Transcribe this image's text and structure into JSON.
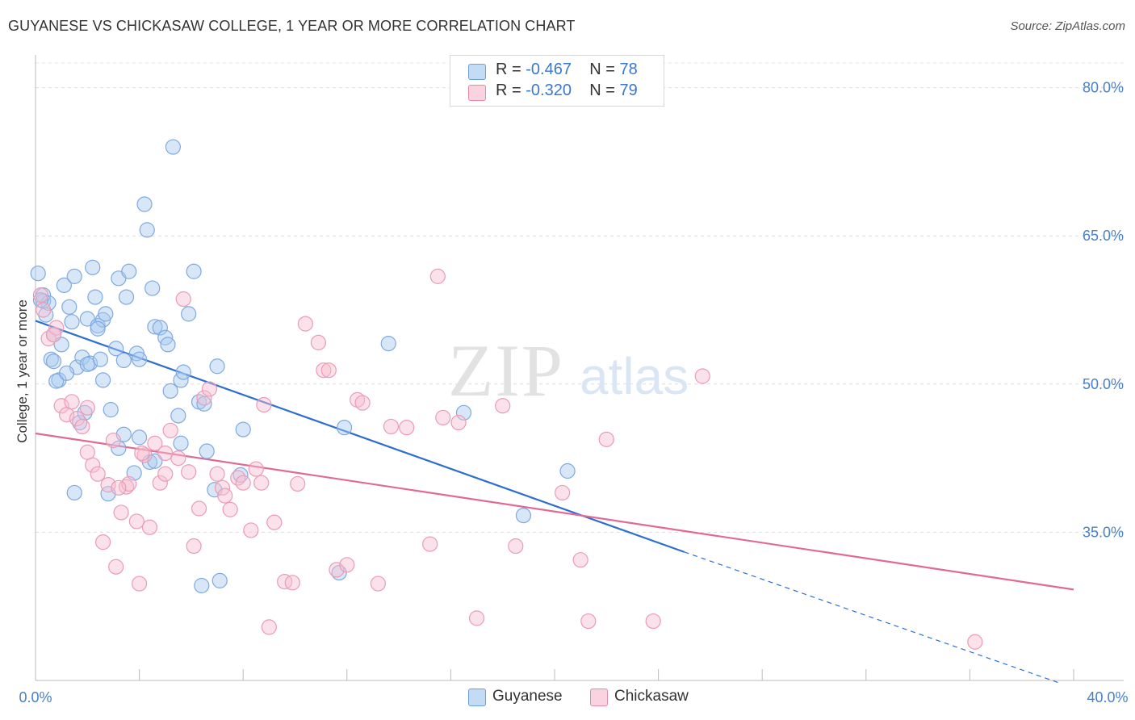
{
  "header": {
    "title": "GUYANESE VS CHICKASAW COLLEGE, 1 YEAR OR MORE CORRELATION CHART",
    "source": "Source: ZipAtlas.com"
  },
  "watermark": {
    "zip": "ZIP",
    "atlas": "atlas"
  },
  "legend": {
    "rows": [
      {
        "r_label": "R = ",
        "r_value": "-0.467",
        "n_label": "N = ",
        "n_value": "78",
        "color": "#a9c9f0",
        "border": "#6f9fd8"
      },
      {
        "r_label": "R = ",
        "r_value": "-0.320",
        "n_label": "N = ",
        "n_value": "79",
        "color": "#f7bfd0",
        "border": "#e48aa6"
      }
    ]
  },
  "bottom_legend": {
    "series1": "Guyanese",
    "series2": "Chickasaw"
  },
  "chart_data": {
    "type": "scatter",
    "title": "GUYANESE VS CHICKASAW COLLEGE, 1 YEAR OR MORE CORRELATION CHART",
    "xlabel": "",
    "ylabel": "College, 1 year or more",
    "xlim": [
      0,
      40
    ],
    "ylim": [
      20,
      82.5
    ],
    "y_ticks": [
      35,
      50,
      65,
      80
    ],
    "y_tick_labels": [
      "35.0%",
      "50.0%",
      "65.0%",
      "80.0%"
    ],
    "x_tick_labels": [
      "0.0%",
      "40.0%"
    ],
    "grid": true,
    "series": [
      {
        "name": "Guyanese",
        "color": "#7fa9e0",
        "line_color": "#2d6fd1",
        "trend": {
          "x0": 0,
          "y0": 56.4,
          "x1": 25.0,
          "y1": 33.0,
          "dash_to_x": 39.5,
          "dash_to_y": 19.7
        },
        "points": [
          [
            0.1,
            61.2
          ],
          [
            0.3,
            59.0
          ],
          [
            0.3,
            58.4
          ],
          [
            0.5,
            58.2
          ],
          [
            0.7,
            55.0
          ],
          [
            0.6,
            52.5
          ],
          [
            0.9,
            50.4
          ],
          [
            1.0,
            54.0
          ],
          [
            1.1,
            60.0
          ],
          [
            1.3,
            57.8
          ],
          [
            1.4,
            56.3
          ],
          [
            1.5,
            60.9
          ],
          [
            1.6,
            51.7
          ],
          [
            1.8,
            52.7
          ],
          [
            2.0,
            56.6
          ],
          [
            2.1,
            52.1
          ],
          [
            2.2,
            61.8
          ],
          [
            2.3,
            58.8
          ],
          [
            2.4,
            55.9
          ],
          [
            2.5,
            52.5
          ],
          [
            2.6,
            56.5
          ],
          [
            2.7,
            57.1
          ],
          [
            2.9,
            47.4
          ],
          [
            3.1,
            53.6
          ],
          [
            3.2,
            60.7
          ],
          [
            3.4,
            52.4
          ],
          [
            3.5,
            58.8
          ],
          [
            3.6,
            61.4
          ],
          [
            3.8,
            41.0
          ],
          [
            3.9,
            53.1
          ],
          [
            4.0,
            44.6
          ],
          [
            4.2,
            68.2
          ],
          [
            4.3,
            65.6
          ],
          [
            4.4,
            42.1
          ],
          [
            4.5,
            59.7
          ],
          [
            4.6,
            55.8
          ],
          [
            4.8,
            55.7
          ],
          [
            5.0,
            54.7
          ],
          [
            5.1,
            54.0
          ],
          [
            5.2,
            49.3
          ],
          [
            5.3,
            74.0
          ],
          [
            5.5,
            46.8
          ],
          [
            5.6,
            50.4
          ],
          [
            5.7,
            51.2
          ],
          [
            5.9,
            57.1
          ],
          [
            6.1,
            61.4
          ],
          [
            6.3,
            48.2
          ],
          [
            6.4,
            29.6
          ],
          [
            6.6,
            43.2
          ],
          [
            6.9,
            39.3
          ],
          [
            7.0,
            51.8
          ],
          [
            7.9,
            40.8
          ],
          [
            8.0,
            45.4
          ],
          [
            11.9,
            45.6
          ],
          [
            13.6,
            54.1
          ],
          [
            16.5,
            47.1
          ],
          [
            18.8,
            36.7
          ],
          [
            20.5,
            41.2
          ],
          [
            3.4,
            44.9
          ],
          [
            1.7,
            46.1
          ],
          [
            0.2,
            58.5
          ],
          [
            0.8,
            50.3
          ],
          [
            2.6,
            50.4
          ],
          [
            1.5,
            39.0
          ],
          [
            2.4,
            55.6
          ],
          [
            5.6,
            44.0
          ],
          [
            4.0,
            52.5
          ],
          [
            1.9,
            47.1
          ],
          [
            3.2,
            43.5
          ],
          [
            2.8,
            38.9
          ],
          [
            0.4,
            57.0
          ],
          [
            6.5,
            48.0
          ],
          [
            7.1,
            30.1
          ],
          [
            4.6,
            42.2
          ],
          [
            1.2,
            51.1
          ],
          [
            2.0,
            52.0
          ],
          [
            0.7,
            52.3
          ],
          [
            11.7,
            30.9
          ]
        ]
      },
      {
        "name": "Chickasaw",
        "color": "#f2a4bc",
        "line_color": "#e06a95",
        "trend": {
          "x0": 0,
          "y0": 45.0,
          "x1": 40.0,
          "y1": 29.2
        },
        "points": [
          [
            0.2,
            59.0
          ],
          [
            0.3,
            57.5
          ],
          [
            0.5,
            54.6
          ],
          [
            0.8,
            55.7
          ],
          [
            1.0,
            47.8
          ],
          [
            1.2,
            46.9
          ],
          [
            1.4,
            48.2
          ],
          [
            1.6,
            46.5
          ],
          [
            1.8,
            45.7
          ],
          [
            2.0,
            43.1
          ],
          [
            2.2,
            41.8
          ],
          [
            2.4,
            40.9
          ],
          [
            2.6,
            34.0
          ],
          [
            2.8,
            39.8
          ],
          [
            3.0,
            44.3
          ],
          [
            3.1,
            31.5
          ],
          [
            3.3,
            37.0
          ],
          [
            3.5,
            39.6
          ],
          [
            3.6,
            39.9
          ],
          [
            3.9,
            36.1
          ],
          [
            4.0,
            29.8
          ],
          [
            4.2,
            42.8
          ],
          [
            4.4,
            35.5
          ],
          [
            4.6,
            44.0
          ],
          [
            4.8,
            40.0
          ],
          [
            5.0,
            40.9
          ],
          [
            5.2,
            45.3
          ],
          [
            5.5,
            42.5
          ],
          [
            5.7,
            58.6
          ],
          [
            5.9,
            41.1
          ],
          [
            6.1,
            33.6
          ],
          [
            6.3,
            37.4
          ],
          [
            6.5,
            48.6
          ],
          [
            6.7,
            49.5
          ],
          [
            7.0,
            40.9
          ],
          [
            7.2,
            39.5
          ],
          [
            7.3,
            38.7
          ],
          [
            7.5,
            37.3
          ],
          [
            7.8,
            40.5
          ],
          [
            8.0,
            40.0
          ],
          [
            8.3,
            35.2
          ],
          [
            8.5,
            41.4
          ],
          [
            8.7,
            40.0
          ],
          [
            8.8,
            47.9
          ],
          [
            9.2,
            36.0
          ],
          [
            9.6,
            30.0
          ],
          [
            9.9,
            29.9
          ],
          [
            10.1,
            39.9
          ],
          [
            10.4,
            56.1
          ],
          [
            10.9,
            54.2
          ],
          [
            11.1,
            51.4
          ],
          [
            11.3,
            51.4
          ],
          [
            11.6,
            31.2
          ],
          [
            12.0,
            31.7
          ],
          [
            12.4,
            48.4
          ],
          [
            12.6,
            48.1
          ],
          [
            13.2,
            29.8
          ],
          [
            13.7,
            45.7
          ],
          [
            14.3,
            45.6
          ],
          [
            15.2,
            33.8
          ],
          [
            15.7,
            46.6
          ],
          [
            15.5,
            60.9
          ],
          [
            16.3,
            46.1
          ],
          [
            17.0,
            26.3
          ],
          [
            18.0,
            47.8
          ],
          [
            18.5,
            33.6
          ],
          [
            20.3,
            39.0
          ],
          [
            21.0,
            32.2
          ],
          [
            21.3,
            26.0
          ],
          [
            22.0,
            44.4
          ],
          [
            23.8,
            26.0
          ],
          [
            25.7,
            50.8
          ],
          [
            36.2,
            23.9
          ],
          [
            5.0,
            43.0
          ],
          [
            4.1,
            43.0
          ],
          [
            9.0,
            25.4
          ],
          [
            0.7,
            55.0
          ],
          [
            3.2,
            39.5
          ],
          [
            2.0,
            47.6
          ]
        ]
      }
    ]
  }
}
